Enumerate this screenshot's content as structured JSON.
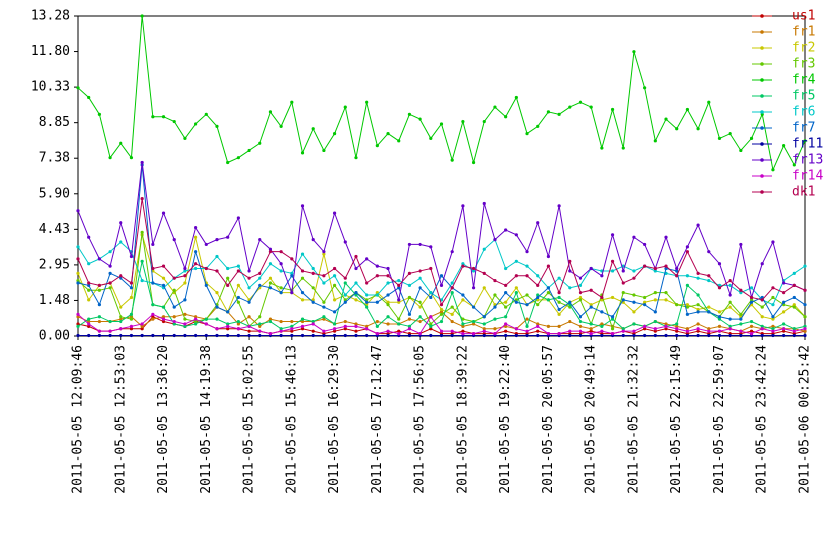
{
  "chart_data": {
    "type": "line",
    "categories": [
      "2011-05-05 12:09:46",
      null,
      null,
      null,
      "2011-05-05 12:53:03",
      null,
      null,
      null,
      "2011-05-05 13:36:20",
      null,
      null,
      null,
      "2011-05-05 14:19:38",
      null,
      null,
      null,
      "2011-05-05 15:02:55",
      null,
      null,
      null,
      "2011-05-05 15:46:13",
      null,
      null,
      null,
      "2011-05-05 16:29:30",
      null,
      null,
      null,
      "2011-05-05 17:12:47",
      null,
      null,
      null,
      "2011-05-05 17:56:05",
      null,
      null,
      null,
      "2011-05-05 18:39:22",
      null,
      null,
      null,
      "2011-05-05 19:22:40",
      null,
      null,
      null,
      "2011-05-05 20:05:57",
      null,
      null,
      null,
      "2011-05-05 20:49:14",
      null,
      null,
      null,
      "2011-05-05 21:32:32",
      null,
      null,
      null,
      "2011-05-05 22:15:49",
      null,
      null,
      null,
      "2011-05-05 22:59:07",
      null,
      null,
      null,
      "2011-05-05 23:42:24",
      null,
      null,
      null,
      "2011-05-06 00:25:42"
    ],
    "ylim": [
      0,
      13.28
    ],
    "yticks": [
      {
        "value": 0,
        "label": "0.00"
      },
      {
        "value": 1.4756,
        "label": "1.48"
      },
      {
        "value": 2.9511,
        "label": "2.95"
      },
      {
        "value": 4.4267,
        "label": "4.43"
      },
      {
        "value": 5.9022,
        "label": "5.90"
      },
      {
        "value": 7.3778,
        "label": "7.38"
      },
      {
        "value": 8.8533,
        "label": "8.85"
      },
      {
        "value": 10.3289,
        "label": "10.33"
      },
      {
        "value": 11.8044,
        "label": "11.80"
      },
      {
        "value": 13.28,
        "label": "13.28"
      }
    ],
    "grid": false,
    "legend": "right",
    "series": [
      {
        "name": "us1",
        "color": "#c00000",
        "values": [
          0.5,
          0.4,
          0.2,
          0.2,
          0.3,
          0.3,
          0.3,
          0.8,
          0.6,
          0.5,
          0.4,
          0.6,
          0.5,
          0.3,
          0.3,
          0.3,
          0.2,
          0.2,
          0.1,
          0.2,
          0.2,
          0.3,
          0.2,
          0.1,
          0.2,
          0.3,
          0.2,
          0.3,
          0.1,
          0.1,
          0.2,
          0.1,
          0.1,
          0.3,
          0.1,
          0.1,
          0.2,
          0.1,
          0.1,
          0.1,
          0.2,
          0.1,
          0.1,
          0.2,
          0.1,
          0.1,
          0.1,
          0.1,
          0.2,
          0.1,
          0.1,
          0.2,
          0.1,
          0.3,
          0.2,
          0.3,
          0.2,
          0.1,
          0.2,
          0.1,
          0.2,
          0.1,
          0.1,
          0.2,
          0.1,
          0.1,
          0.2,
          0.1,
          0.2
        ]
      },
      {
        "name": "fr1",
        "color": "#c87800",
        "values": [
          0.8,
          0.6,
          0.6,
          0.6,
          0.7,
          0.8,
          0.4,
          0.7,
          0.8,
          0.8,
          0.9,
          0.8,
          0.7,
          1.2,
          1.0,
          0.5,
          0.8,
          0.4,
          0.7,
          0.6,
          0.6,
          0.6,
          0.6,
          0.7,
          0.5,
          0.6,
          0.5,
          0.4,
          0.6,
          0.5,
          0.5,
          0.7,
          0.6,
          0.8,
          1.0,
          0.6,
          0.4,
          0.5,
          0.3,
          0.3,
          0.4,
          0.3,
          0.7,
          0.5,
          0.4,
          0.4,
          0.6,
          0.4,
          0.3,
          0.5,
          0.4,
          0.3,
          0.5,
          0.4,
          0.6,
          0.5,
          0.4,
          0.3,
          0.5,
          0.3,
          0.4,
          0.3,
          0.2,
          0.4,
          0.3,
          0.4,
          0.3,
          0.3,
          0.2
        ]
      },
      {
        "name": "fr2",
        "color": "#c8c800",
        "values": [
          2.6,
          1.5,
          2.1,
          2.2,
          1.2,
          1.6,
          4.2,
          2.7,
          2.4,
          1.8,
          2.2,
          4.1,
          2.2,
          1.8,
          1.0,
          2.1,
          1.5,
          2.0,
          2.4,
          1.8,
          1.8,
          1.5,
          1.5,
          3.4,
          1.5,
          1.7,
          1.5,
          1.3,
          1.8,
          1.4,
          1.4,
          1.6,
          1.2,
          1.8,
          1.1,
          0.9,
          1.5,
          1.2,
          2.0,
          1.3,
          1.4,
          2.0,
          1.3,
          1.5,
          1.5,
          0.9,
          1.4,
          1.6,
          1.3,
          1.5,
          1.6,
          1.4,
          1.0,
          1.4,
          1.5,
          1.5,
          1.3,
          1.3,
          1.1,
          1.2,
          1.0,
          1.2,
          0.8,
          1.3,
          0.8,
          0.7,
          1.0,
          1.3,
          0.8
        ]
      },
      {
        "name": "fr3",
        "color": "#64c800",
        "values": [
          2.3,
          1.9,
          1.9,
          2.0,
          0.8,
          0.7,
          4.3,
          1.3,
          1.2,
          1.9,
          0.7,
          0.6,
          0.7,
          1.3,
          2.4,
          1.4,
          0.4,
          0.8,
          2.2,
          2.0,
          1.9,
          2.4,
          2.0,
          1.4,
          2.1,
          1.5,
          1.8,
          1.5,
          1.7,
          1.3,
          0.7,
          1.6,
          1.4,
          0.5,
          0.9,
          1.2,
          0.7,
          0.6,
          0.8,
          1.7,
          1.2,
          1.5,
          1.7,
          1.3,
          1.8,
          1.4,
          1.2,
          1.5,
          0.5,
          1.7,
          0.3,
          1.8,
          1.7,
          1.6,
          1.8,
          1.8,
          1.3,
          1.2,
          1.3,
          1.0,
          0.8,
          1.4,
          0.9,
          1.5,
          1.2,
          1.6,
          1.3,
          1.2,
          0.8
        ]
      },
      {
        "name": "fr4",
        "color": "#00c800",
        "values": [
          10.3,
          9.9,
          9.2,
          7.4,
          8.0,
          7.4,
          13.28,
          9.1,
          9.1,
          8.9,
          8.2,
          8.8,
          9.2,
          8.7,
          7.2,
          7.4,
          7.7,
          8.0,
          9.3,
          8.7,
          9.7,
          7.6,
          8.6,
          7.7,
          8.4,
          9.5,
          7.4,
          9.7,
          7.9,
          8.4,
          8.1,
          9.2,
          9.0,
          8.2,
          8.8,
          7.3,
          8.9,
          7.2,
          8.9,
          9.5,
          9.1,
          9.9,
          8.4,
          8.7,
          9.3,
          9.2,
          9.5,
          9.7,
          9.5,
          7.8,
          9.4,
          7.8,
          11.8,
          10.3,
          8.1,
          9.0,
          8.6,
          9.4,
          8.6,
          9.7,
          8.2,
          8.4,
          7.7,
          8.2,
          9.2,
          6.9,
          7.9,
          7.1,
          8.1
        ]
      },
      {
        "name": "fr5",
        "color": "#00c864",
        "values": [
          0.4,
          0.7,
          0.8,
          0.6,
          0.6,
          0.9,
          3.1,
          1.3,
          1.2,
          0.5,
          0.4,
          0.5,
          0.7,
          0.7,
          0.5,
          0.6,
          0.4,
          0.5,
          0.6,
          0.3,
          0.4,
          0.7,
          0.6,
          0.8,
          0.5,
          2.2,
          1.7,
          1.2,
          0.4,
          0.8,
          0.5,
          0.4,
          0.8,
          0.4,
          0.6,
          1.8,
          0.5,
          0.6,
          0.5,
          0.7,
          0.8,
          1.8,
          0.4,
          1.7,
          1.5,
          1.6,
          1.3,
          0.6,
          0.5,
          0.4,
          0.7,
          0.3,
          0.5,
          0.4,
          0.6,
          0.4,
          0.5,
          2.1,
          1.7,
          1.0,
          0.7,
          0.4,
          0.5,
          0.6,
          0.4,
          0.3,
          0.5,
          0.3,
          0.4
        ]
      },
      {
        "name": "fr6",
        "color": "#00c8c8",
        "values": [
          3.7,
          3.0,
          3.2,
          3.5,
          3.9,
          3.5,
          2.3,
          2.2,
          2.0,
          2.4,
          2.7,
          2.8,
          2.8,
          3.3,
          2.8,
          2.9,
          2.0,
          2.4,
          3.0,
          2.7,
          2.6,
          3.4,
          2.8,
          2.2,
          2.5,
          1.7,
          2.2,
          1.7,
          1.7,
          2.2,
          2.3,
          2.1,
          2.4,
          1.8,
          1.5,
          2.2,
          3.0,
          2.7,
          3.6,
          4.0,
          2.8,
          3.1,
          2.9,
          2.5,
          2.0,
          2.4,
          2.0,
          2.1,
          2.8,
          2.7,
          2.7,
          2.9,
          2.7,
          2.9,
          2.7,
          2.6,
          2.5,
          2.5,
          2.4,
          2.3,
          2.1,
          2.1,
          1.8,
          2.0,
          1.5,
          1.3,
          2.3,
          2.6,
          2.9
        ]
      },
      {
        "name": "fr7",
        "color": "#0064c8",
        "values": [
          2.2,
          2.1,
          1.3,
          2.6,
          2.4,
          2.0,
          7.1,
          2.2,
          2.1,
          1.2,
          1.5,
          3.5,
          2.1,
          1.2,
          1.0,
          1.6,
          1.4,
          2.1,
          2.0,
          1.8,
          2.5,
          1.8,
          1.4,
          1.2,
          1.0,
          1.4,
          1.8,
          1.4,
          1.4,
          1.7,
          2.0,
          0.9,
          2.0,
          1.6,
          2.5,
          2.0,
          1.7,
          1.2,
          0.8,
          1.2,
          1.8,
          1.4,
          1.3,
          1.6,
          2.0,
          1.1,
          1.4,
          0.8,
          1.2,
          1.0,
          0.8,
          1.5,
          1.4,
          1.3,
          1.0,
          2.8,
          2.7,
          0.9,
          1.0,
          1.0,
          0.8,
          0.7,
          0.7,
          1.4,
          1.6,
          0.8,
          1.4,
          1.6,
          1.3
        ]
      },
      {
        "name": "fr11",
        "color": "#0000a0",
        "values": [
          0.02,
          0.02,
          0.02,
          0.02,
          0.02,
          0.02,
          0.02,
          0.02,
          0.02,
          0.02,
          0.02,
          0.02,
          0.02,
          0.02,
          0.02,
          0.02,
          0.02,
          0.02,
          0.02,
          0.02,
          0.02,
          0.02,
          0.02,
          0.02,
          0.02,
          0.02,
          0.02,
          0.02,
          0.02,
          0.02,
          0.02,
          0.02,
          0.02,
          0.02,
          0.02,
          0.02,
          0.02,
          0.02,
          0.02,
          0.02,
          0.02,
          0.02,
          0.02,
          0.02,
          0.02,
          0.02,
          0.02,
          0.02,
          0.02,
          0.02,
          0.02,
          0.02,
          0.02,
          0.02,
          0.02,
          0.02,
          0.02,
          0.02,
          0.02,
          0.02,
          0.02,
          0.02,
          0.02,
          0.02,
          0.02,
          0.02,
          0.02,
          0.02,
          0.02
        ]
      },
      {
        "name": "fr13",
        "color": "#6400c8",
        "values": [
          5.2,
          4.1,
          3.2,
          2.9,
          4.7,
          3.3,
          7.2,
          3.8,
          5.1,
          4.0,
          2.8,
          4.5,
          3.8,
          4.0,
          4.1,
          4.9,
          2.7,
          4.0,
          3.6,
          3.0,
          1.8,
          5.4,
          4.0,
          3.5,
          5.1,
          3.9,
          2.8,
          3.2,
          2.9,
          2.8,
          1.5,
          3.8,
          3.8,
          3.7,
          2.1,
          3.5,
          5.4,
          2.0,
          5.5,
          4.0,
          4.4,
          4.2,
          3.5,
          4.7,
          3.3,
          5.4,
          2.7,
          2.4,
          2.8,
          2.5,
          4.2,
          2.7,
          4.1,
          3.8,
          2.8,
          4.1,
          2.8,
          3.7,
          4.6,
          3.5,
          3.0,
          1.7,
          3.8,
          1.6,
          3.0,
          3.9,
          2.2,
          2.1,
          1.9
        ]
      },
      {
        "name": "fr14",
        "color": "#c800c8",
        "values": [
          0.9,
          0.5,
          0.2,
          0.2,
          0.3,
          0.4,
          0.5,
          0.9,
          0.7,
          0.6,
          0.5,
          0.7,
          0.5,
          0.3,
          0.4,
          0.3,
          0.4,
          0.2,
          0.1,
          0.2,
          0.3,
          0.4,
          0.5,
          0.2,
          0.3,
          0.4,
          0.4,
          0.3,
          0.1,
          0.2,
          0.1,
          0.3,
          0.1,
          0.8,
          0.2,
          0.2,
          0.1,
          0.1,
          0.2,
          0.1,
          0.5,
          0.3,
          0.2,
          0.4,
          0.1,
          0.1,
          0.2,
          0.2,
          0.1,
          0.2,
          0.1,
          0.2,
          0.2,
          0.4,
          0.3,
          0.4,
          0.3,
          0.2,
          0.3,
          0.2,
          0.2,
          0.3,
          0.2,
          0.1,
          0.3,
          0.2,
          0.3,
          0.2,
          0.3
        ]
      },
      {
        "name": "dk1",
        "color": "#b40050",
        "values": [
          3.2,
          2.2,
          2.1,
          2.2,
          2.5,
          2.2,
          5.7,
          2.8,
          2.9,
          2.4,
          2.5,
          3.0,
          2.8,
          2.7,
          2.1,
          2.7,
          2.4,
          2.6,
          3.5,
          3.5,
          3.2,
          2.7,
          2.6,
          2.5,
          2.8,
          2.4,
          3.3,
          2.2,
          2.5,
          2.5,
          2.1,
          2.6,
          2.7,
          2.8,
          1.3,
          2.0,
          2.9,
          2.8,
          2.6,
          2.3,
          2.1,
          2.5,
          2.5,
          2.1,
          2.9,
          1.8,
          3.1,
          1.8,
          1.9,
          1.6,
          3.1,
          2.2,
          2.4,
          2.9,
          2.8,
          2.9,
          2.5,
          3.5,
          2.6,
          2.5,
          2.0,
          2.3,
          1.9,
          1.6,
          1.5,
          2.0,
          1.8,
          2.1,
          1.9
        ]
      }
    ]
  }
}
